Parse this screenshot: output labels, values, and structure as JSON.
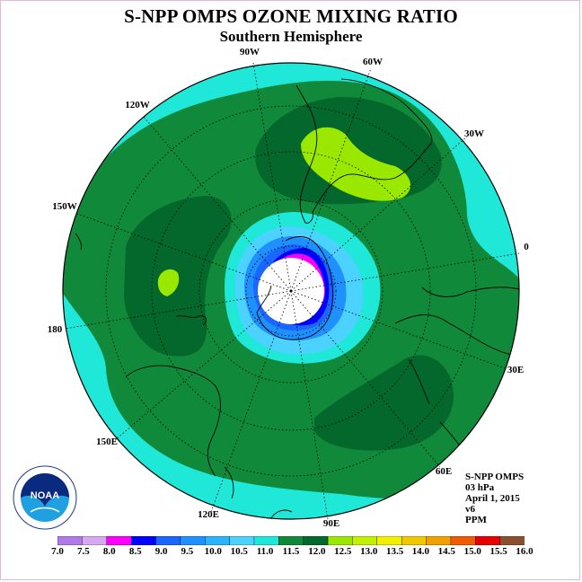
{
  "title": "S-NPP OMPS OZONE MIXING RATIO",
  "subtitle": "Southern Hemisphere",
  "longitude_labels": [
    "90W",
    "60W",
    "30W",
    "0",
    "30E",
    "60E",
    "90E",
    "120E",
    "150E",
    "180",
    "150W",
    "120W"
  ],
  "info": {
    "instrument": "S-NPP OMPS",
    "pressure": "03 hPa",
    "date": "April 1, 2015",
    "version": "v6",
    "units": "PPM"
  },
  "logo": {
    "text": "NOAA",
    "icon": "noaa-logo-icon"
  },
  "colorbar": {
    "ticks": [
      "7.0",
      "7.5",
      "8.0",
      "8.5",
      "9.0",
      "9.5",
      "10.0",
      "10.5",
      "11.0",
      "11.5",
      "12.0",
      "12.5",
      "13.0",
      "13.5",
      "14.0",
      "14.5",
      "15.0",
      "15.5",
      "16.0"
    ],
    "colors": [
      "#b07be8",
      "#d8a8f0",
      "#ff00ff",
      "#0000ff",
      "#1a66ff",
      "#1e90ff",
      "#28b4ff",
      "#4cd2ff",
      "#1fe8d8",
      "#108a3a",
      "#04682c",
      "#9ae800",
      "#c4f000",
      "#f0f000",
      "#f0c800",
      "#f0a000",
      "#f05a00",
      "#e80000",
      "#8c5030"
    ]
  },
  "colors": {
    "ring_cyan": "#1fe8d8",
    "green": "#108a3a",
    "dark_green": "#04682c",
    "lime": "#9ae800",
    "pole_mask": "#ffffff"
  }
}
